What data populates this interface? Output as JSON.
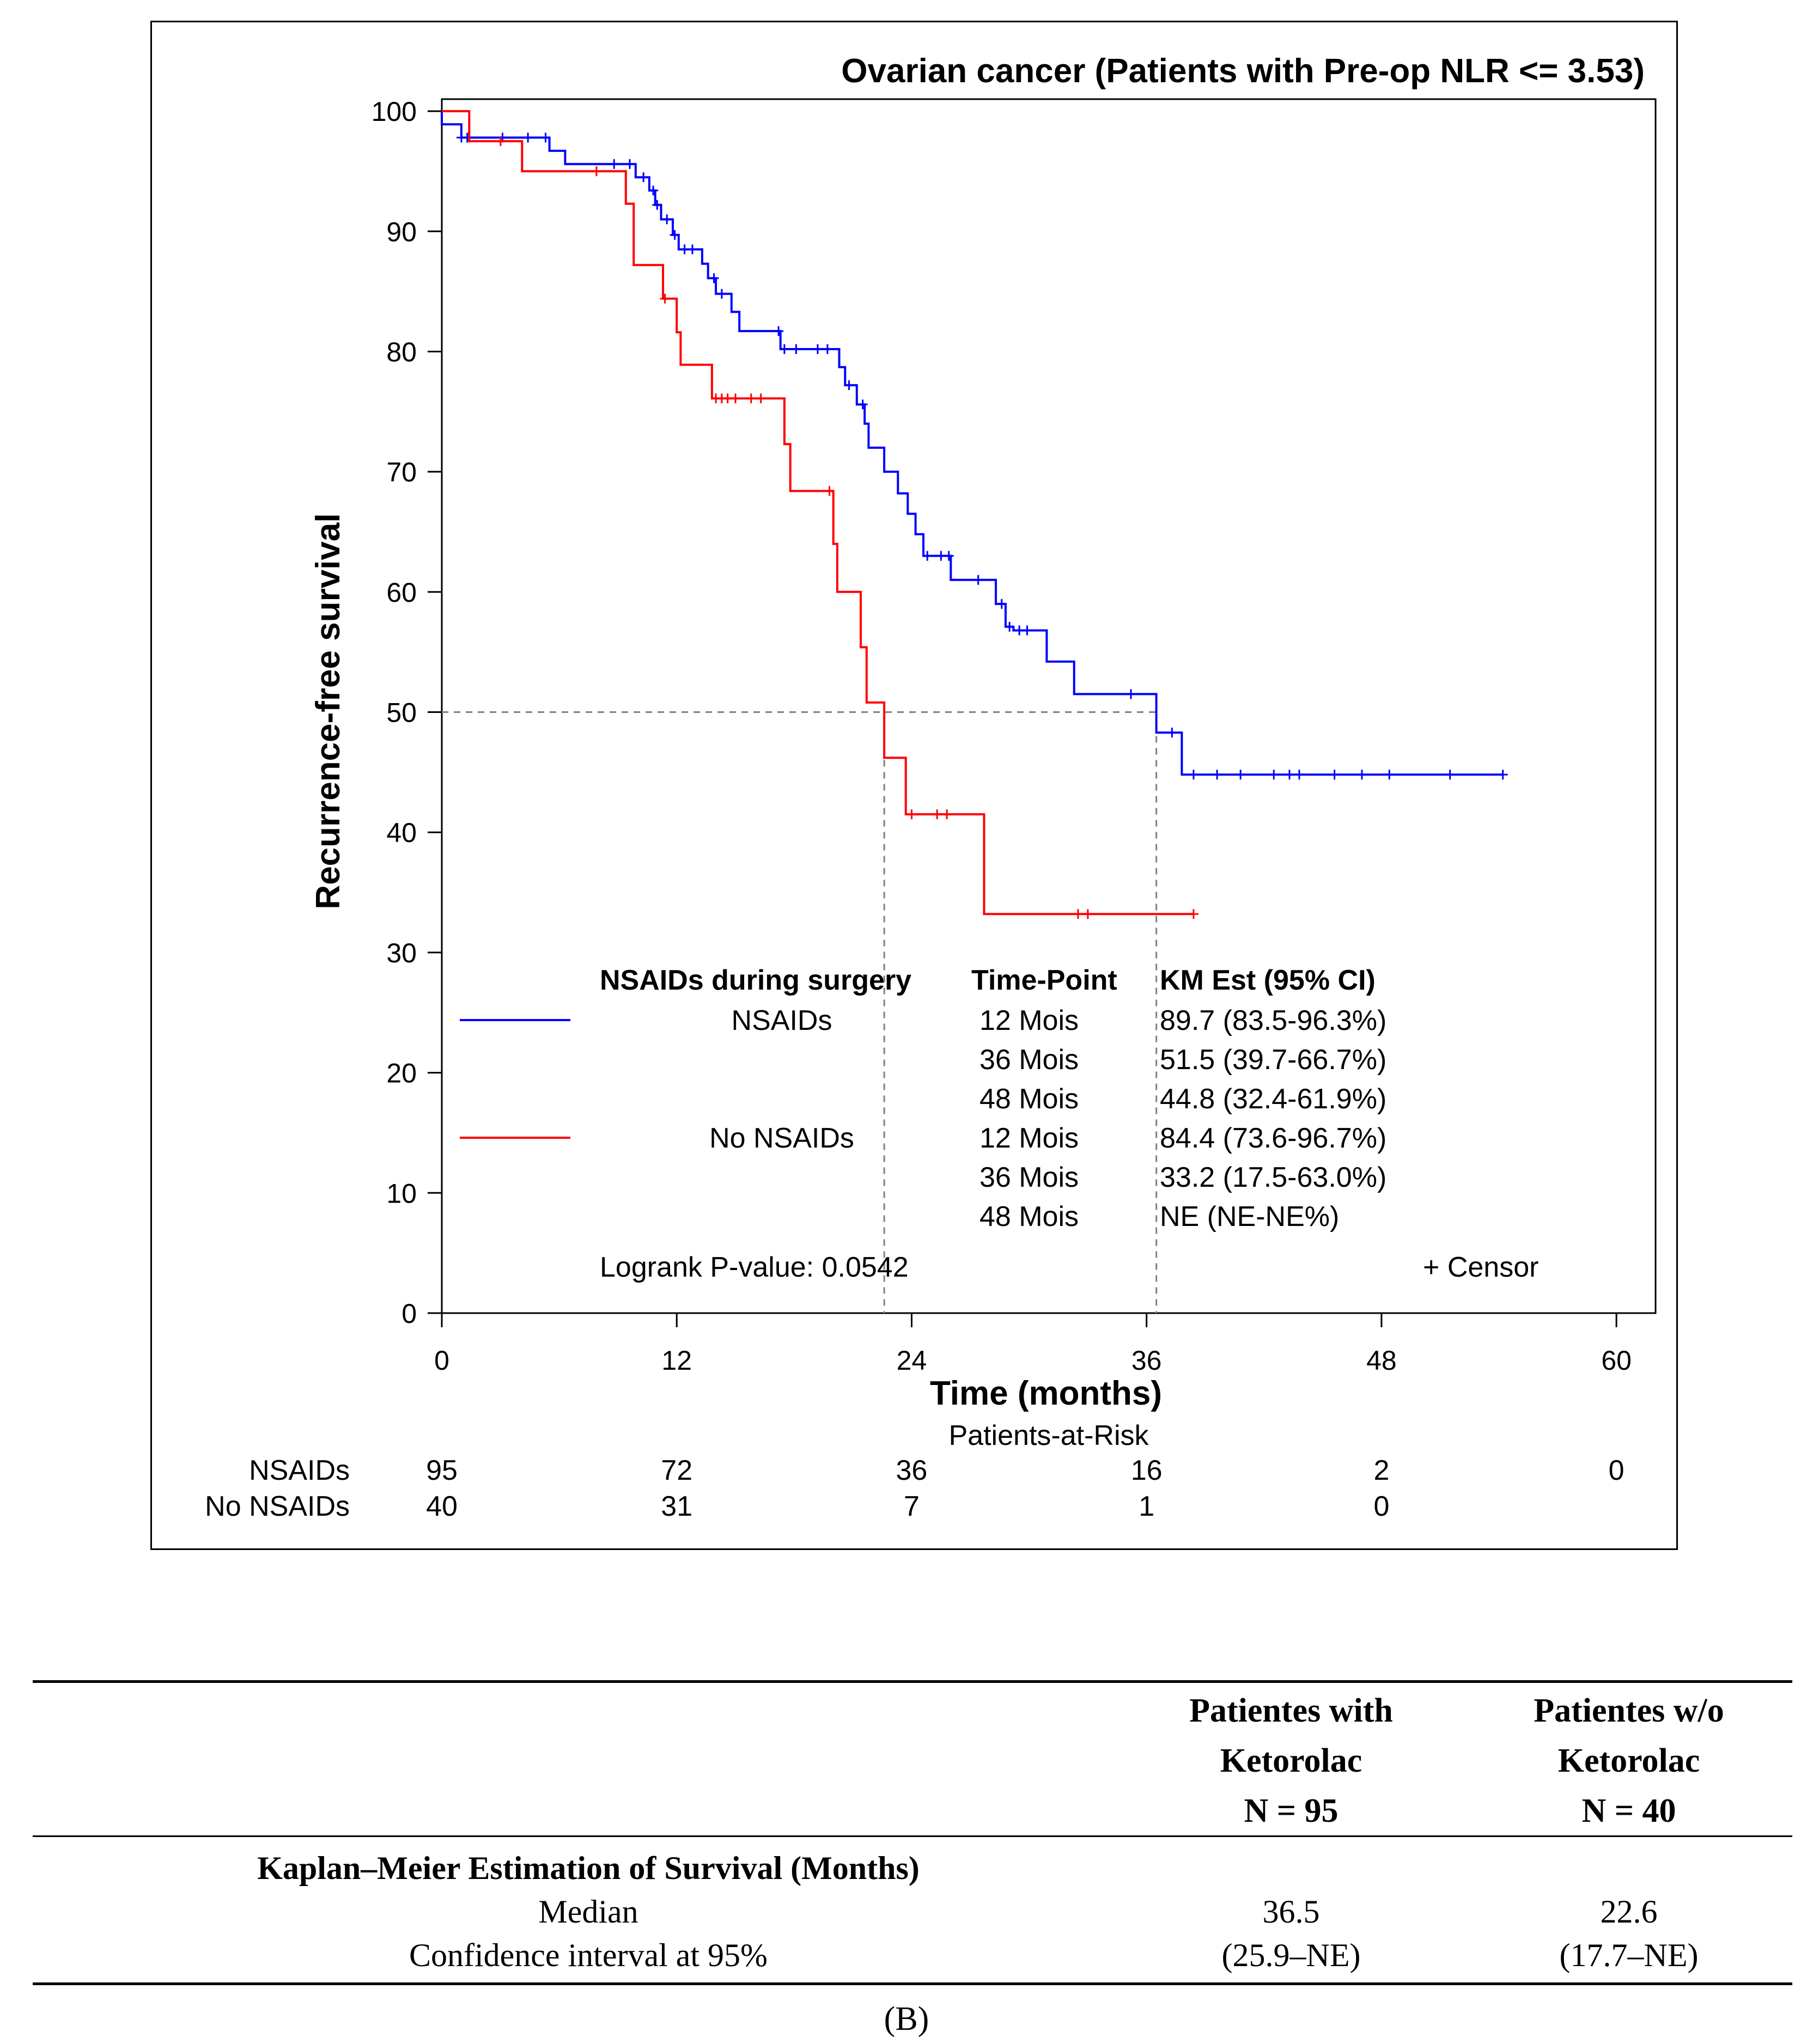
{
  "chart_data": {
    "type": "line",
    "subtype": "kaplan-meier",
    "title": "Ovarian cancer (Patients with Pre-op NLR <= 3.53)",
    "xlabel": "Time (months)",
    "ylabel": "Recurrence-free survival",
    "xlim": [
      0,
      62
    ],
    "ylim": [
      0,
      101
    ],
    "x_ticks": [
      0,
      12,
      24,
      36,
      48,
      60
    ],
    "x_tick_labels": [
      "0",
      "12",
      "24",
      "36",
      "48",
      "60"
    ],
    "y_ticks": [
      0,
      10,
      20,
      30,
      40,
      50,
      60,
      70,
      80,
      90,
      100
    ],
    "y_tick_labels": [
      "0",
      "10",
      "20",
      "30",
      "40",
      "50",
      "60",
      "70",
      "80",
      "90",
      "100"
    ],
    "reference_lines": {
      "horizontal_y": 50,
      "vertical_x": [
        22.6,
        36.5
      ],
      "style": "dashed"
    },
    "series": [
      {
        "name": "NSAIDs",
        "color": "#0000ff",
        "steps": [
          [
            0,
            100
          ],
          [
            0,
            98.9
          ],
          [
            1.0,
            98.9
          ],
          [
            1.0,
            97.8
          ],
          [
            5.5,
            97.8
          ],
          [
            5.5,
            96.7
          ],
          [
            6.3,
            96.7
          ],
          [
            6.3,
            95.6
          ],
          [
            9.9,
            95.6
          ],
          [
            9.9,
            94.5
          ],
          [
            10.6,
            94.5
          ],
          [
            10.6,
            93.4
          ],
          [
            10.9,
            93.4
          ],
          [
            10.9,
            92.2
          ],
          [
            11.2,
            92.2
          ],
          [
            11.2,
            91.0
          ],
          [
            11.8,
            91.0
          ],
          [
            11.8,
            89.7
          ],
          [
            12.1,
            89.7
          ],
          [
            12.1,
            88.5
          ],
          [
            13.3,
            88.5
          ],
          [
            13.3,
            87.3
          ],
          [
            13.6,
            87.3
          ],
          [
            13.6,
            86.1
          ],
          [
            14.0,
            86.1
          ],
          [
            14.0,
            84.8
          ],
          [
            14.8,
            84.8
          ],
          [
            14.8,
            83.3
          ],
          [
            15.2,
            83.3
          ],
          [
            15.2,
            81.7
          ],
          [
            17.3,
            81.7
          ],
          [
            17.3,
            80.2
          ],
          [
            20.3,
            80.2
          ],
          [
            20.3,
            78.7
          ],
          [
            20.6,
            78.7
          ],
          [
            20.6,
            77.2
          ],
          [
            21.2,
            77.2
          ],
          [
            21.2,
            75.6
          ],
          [
            21.6,
            75.6
          ],
          [
            21.6,
            74.0
          ],
          [
            21.8,
            74.0
          ],
          [
            21.8,
            72.0
          ],
          [
            22.6,
            72.0
          ],
          [
            22.6,
            70.0
          ],
          [
            23.3,
            70.0
          ],
          [
            23.3,
            68.2
          ],
          [
            23.8,
            68.2
          ],
          [
            23.8,
            66.5
          ],
          [
            24.2,
            66.5
          ],
          [
            24.2,
            64.8
          ],
          [
            24.6,
            64.8
          ],
          [
            24.6,
            63.0
          ],
          [
            26.0,
            63.0
          ],
          [
            26.0,
            61.0
          ],
          [
            28.3,
            61.0
          ],
          [
            28.3,
            59.0
          ],
          [
            28.8,
            59.0
          ],
          [
            28.8,
            57.1
          ],
          [
            29.2,
            57.1
          ],
          [
            29.2,
            56.8
          ],
          [
            30.9,
            56.8
          ],
          [
            30.9,
            54.2
          ],
          [
            32.3,
            54.2
          ],
          [
            32.3,
            51.5
          ],
          [
            36.5,
            51.5
          ],
          [
            36.5,
            48.3
          ],
          [
            37.8,
            48.3
          ],
          [
            37.8,
            44.8
          ],
          [
            54.2,
            44.8
          ]
        ],
        "censors": [
          [
            1.0,
            97.8
          ],
          [
            1.3,
            97.8
          ],
          [
            3.1,
            97.8
          ],
          [
            4.4,
            97.8
          ],
          [
            5.3,
            97.8
          ],
          [
            8.8,
            95.6
          ],
          [
            9.6,
            95.6
          ],
          [
            10.3,
            94.5
          ],
          [
            10.8,
            93.4
          ],
          [
            11.0,
            92.2
          ],
          [
            11.5,
            91.0
          ],
          [
            11.9,
            89.7
          ],
          [
            12.4,
            88.5
          ],
          [
            12.8,
            88.5
          ],
          [
            13.9,
            86.1
          ],
          [
            14.3,
            84.8
          ],
          [
            17.2,
            81.7
          ],
          [
            17.5,
            80.2
          ],
          [
            18.1,
            80.2
          ],
          [
            19.2,
            80.2
          ],
          [
            19.7,
            80.2
          ],
          [
            20.8,
            77.2
          ],
          [
            21.5,
            75.6
          ],
          [
            24.8,
            63.0
          ],
          [
            25.5,
            63.0
          ],
          [
            25.9,
            63.0
          ],
          [
            27.4,
            61.0
          ],
          [
            28.6,
            59.0
          ],
          [
            29.0,
            57.1
          ],
          [
            29.5,
            56.8
          ],
          [
            29.9,
            56.8
          ],
          [
            35.2,
            51.5
          ],
          [
            37.3,
            48.3
          ],
          [
            38.4,
            44.8
          ],
          [
            39.6,
            44.8
          ],
          [
            40.8,
            44.8
          ],
          [
            42.5,
            44.8
          ],
          [
            43.3,
            44.8
          ],
          [
            43.8,
            44.8
          ],
          [
            45.6,
            44.8
          ],
          [
            47.0,
            44.8
          ],
          [
            48.4,
            44.8
          ],
          [
            51.5,
            44.8
          ],
          [
            54.2,
            44.8
          ]
        ]
      },
      {
        "name": "No NSAIDs",
        "color": "#ff0000",
        "steps": [
          [
            0,
            100
          ],
          [
            1.4,
            100
          ],
          [
            1.4,
            97.5
          ],
          [
            4.1,
            97.5
          ],
          [
            4.1,
            95.0
          ],
          [
            9.4,
            95.0
          ],
          [
            9.4,
            92.3
          ],
          [
            9.8,
            92.3
          ],
          [
            9.8,
            87.2
          ],
          [
            11.3,
            87.2
          ],
          [
            11.3,
            84.4
          ],
          [
            12.0,
            84.4
          ],
          [
            12.0,
            81.6
          ],
          [
            12.2,
            81.6
          ],
          [
            12.2,
            78.9
          ],
          [
            13.8,
            78.9
          ],
          [
            13.8,
            76.1
          ],
          [
            17.5,
            76.1
          ],
          [
            17.5,
            72.3
          ],
          [
            17.8,
            72.3
          ],
          [
            17.8,
            68.4
          ],
          [
            20.0,
            68.4
          ],
          [
            20.0,
            64.0
          ],
          [
            20.2,
            64.0
          ],
          [
            20.2,
            60.0
          ],
          [
            21.4,
            60.0
          ],
          [
            21.4,
            55.4
          ],
          [
            21.7,
            55.4
          ],
          [
            21.7,
            50.8
          ],
          [
            22.6,
            50.8
          ],
          [
            22.6,
            46.2
          ],
          [
            23.7,
            46.2
          ],
          [
            23.7,
            41.5
          ],
          [
            27.7,
            41.5
          ],
          [
            27.7,
            33.2
          ],
          [
            38.4,
            33.2
          ]
        ],
        "censors": [
          [
            3.0,
            97.5
          ],
          [
            7.9,
            95.0
          ],
          [
            11.4,
            84.4
          ],
          [
            14.0,
            76.1
          ],
          [
            14.3,
            76.1
          ],
          [
            14.6,
            76.1
          ],
          [
            15.0,
            76.1
          ],
          [
            15.8,
            76.1
          ],
          [
            16.3,
            76.1
          ],
          [
            19.8,
            68.4
          ],
          [
            24.0,
            41.5
          ],
          [
            25.3,
            41.5
          ],
          [
            25.8,
            41.5
          ],
          [
            32.5,
            33.2
          ],
          [
            33.0,
            33.2
          ],
          [
            38.4,
            33.2
          ]
        ]
      }
    ],
    "legend": {
      "header": {
        "group": "NSAIDs during surgery",
        "time_point": "Time-Point",
        "km": "KM Est (95% CI)"
      },
      "rows": [
        {
          "group": "NSAIDs",
          "time": "12 Mois",
          "km": "89.7 (83.5-96.3%)"
        },
        {
          "group": "",
          "time": "36 Mois",
          "km": "51.5 (39.7-66.7%)"
        },
        {
          "group": "",
          "time": "48 Mois",
          "km": "44.8 (32.4-61.9%)"
        },
        {
          "group": "No NSAIDs",
          "time": "12 Mois",
          "km": "84.4 (73.6-96.7%)"
        },
        {
          "group": "",
          "time": "36 Mois",
          "km": "33.2 (17.5-63.0%)"
        },
        {
          "group": "",
          "time": "48 Mois",
          "km": "NE (NE-NE%)"
        }
      ],
      "logrank": "Logrank P-value: 0.0542",
      "censor_label": "+ Censor"
    },
    "at_risk": {
      "title": "Patients-at-Risk",
      "rows": [
        {
          "label": "NSAIDs",
          "values": [
            "95",
            "72",
            "36",
            "16",
            "2",
            "0"
          ]
        },
        {
          "label": "No NSAIDs",
          "values": [
            "40",
            "31",
            "7",
            "1",
            "0",
            ""
          ]
        }
      ]
    }
  },
  "table": {
    "headers": [
      {
        "lines": [
          "Patientes with",
          "Ketorolac",
          "N = 95"
        ]
      },
      {
        "lines": [
          "Patientes w/o",
          "Ketorolac",
          "N = 40"
        ]
      }
    ],
    "section_title": "Kaplan–Meier Estimation of Survival (Months)",
    "rows": [
      {
        "label": "Median",
        "values": [
          "36.5",
          "22.6"
        ]
      },
      {
        "label": "Confidence interval at 95%",
        "values": [
          "(25.9–NE)",
          "(17.7–NE)"
        ]
      }
    ]
  },
  "panel_label": "(B)"
}
